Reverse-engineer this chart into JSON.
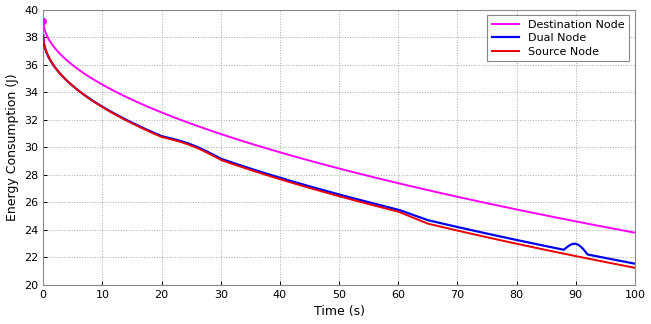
{
  "xlabel": "Time (s)",
  "ylabel": "Energy Consumption (J)",
  "xlim": [
    0,
    100
  ],
  "ylim": [
    20,
    40
  ],
  "yticks": [
    20,
    22,
    24,
    26,
    28,
    30,
    32,
    34,
    36,
    38,
    40
  ],
  "xticks": [
    0,
    10,
    20,
    30,
    40,
    50,
    60,
    70,
    80,
    90,
    100
  ],
  "dest_start": 39.2,
  "dest_end": 23.8,
  "src_start": 38.15,
  "src_end": 21.6,
  "dual_start": 38.1,
  "dual_end": 21.8,
  "legend": [
    {
      "label": "Destination Node",
      "color": "#FF00FF",
      "lw": 1.4
    },
    {
      "label": "Dual Node",
      "color": "#0000EE",
      "lw": 1.6
    },
    {
      "label": "Source Node",
      "color": "#EE0000",
      "lw": 1.4
    }
  ],
  "bg_color": "#FFFFFF",
  "grid_color": "#AAAAAA",
  "xlabel_fontsize": 9,
  "ylabel_fontsize": 9,
  "tick_fontsize": 8,
  "legend_fontsize": 8
}
